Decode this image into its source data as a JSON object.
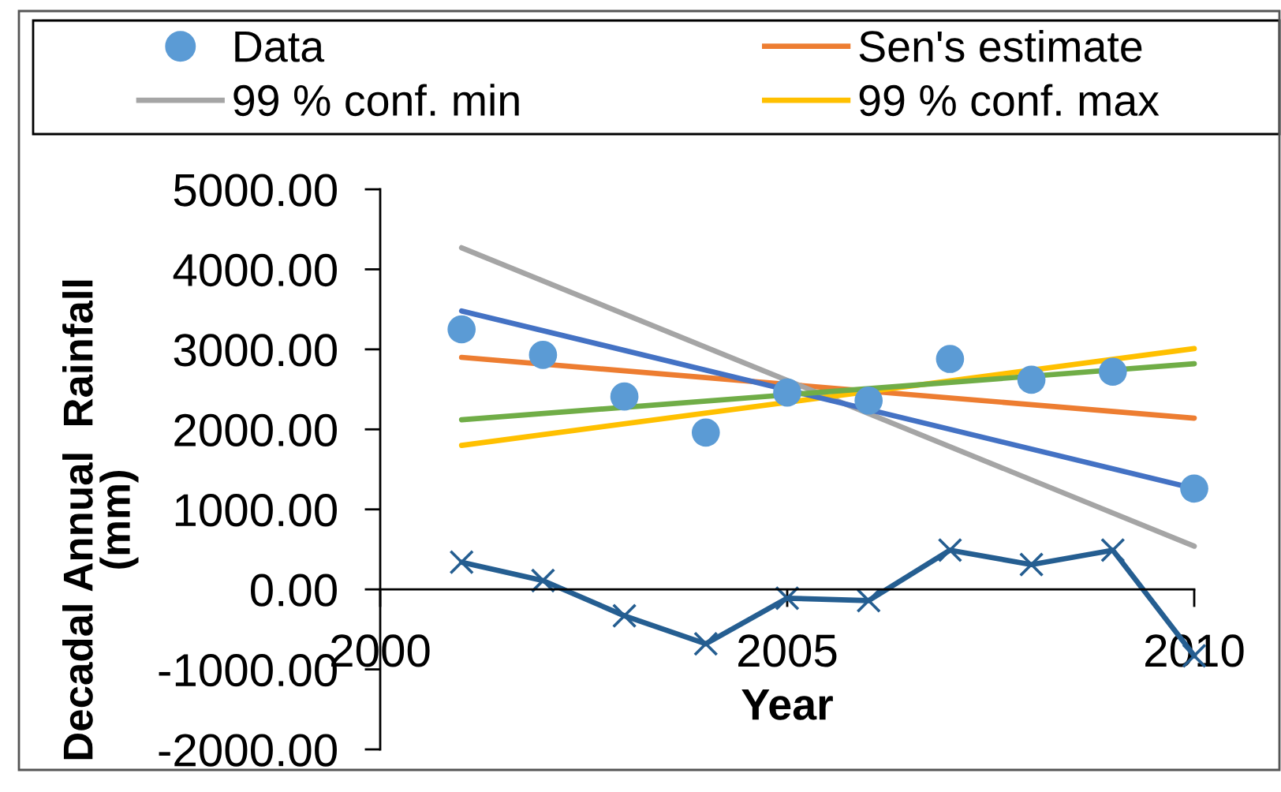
{
  "chart_data": {
    "type": "line",
    "xlabel": "Year",
    "ylabel": "Decadal Annual  Rainfall\n(mm)",
    "xlim": [
      2000,
      2010
    ],
    "ylim": [
      -2000,
      5000
    ],
    "xticks": [
      2000,
      2005,
      2010
    ],
    "yticks": [
      {
        "value": 5000,
        "label": "5000.00"
      },
      {
        "value": 4000,
        "label": "4000.00"
      },
      {
        "value": 3000,
        "label": "3000.00"
      },
      {
        "value": 2000,
        "label": "2000.00"
      },
      {
        "value": 1000,
        "label": "1000.00"
      },
      {
        "value": 0,
        "label": "0.00"
      },
      {
        "value": -1000,
        "label": "-1000.00"
      },
      {
        "value": -2000,
        "label": "-2000.00"
      }
    ],
    "legend": "top",
    "series": [
      {
        "name": "Data",
        "type": "scatter",
        "color": "#5b9bd5",
        "marker": "circle",
        "x": [
          2001,
          2002,
          2003,
          2004,
          2005,
          2006,
          2007,
          2008,
          2009,
          2010
        ],
        "values": [
          3250,
          2930,
          2410,
          1960,
          2460,
          2360,
          2880,
          2620,
          2720,
          1260
        ]
      },
      {
        "name": "Sen's estimate",
        "color": "#ed7d31",
        "x": [
          2001,
          2010
        ],
        "values": [
          2900,
          2140
        ]
      },
      {
        "name": "99 % conf. min",
        "color": "#a5a5a5",
        "x": [
          2001,
          2010
        ],
        "values": [
          4270,
          540
        ]
      },
      {
        "name": "99 % conf. max",
        "color": "#ffc000",
        "x": [
          2001,
          2010
        ],
        "values": [
          1800,
          3010
        ]
      },
      {
        "color": "#4472c4",
        "x": [
          2001,
          2010
        ],
        "values": [
          3480,
          1260
        ]
      },
      {
        "color": "#70ad47",
        "x": [
          2001,
          2010
        ],
        "values": [
          2120,
          2820
        ]
      },
      {
        "color": "#255e91",
        "marker": "cross",
        "x": [
          2001,
          2002,
          2003,
          2004,
          2005,
          2006,
          2007,
          2008,
          2009,
          2010
        ],
        "values": [
          340,
          110,
          -330,
          -680,
          -110,
          -140,
          490,
          310,
          490,
          -830
        ]
      }
    ]
  }
}
